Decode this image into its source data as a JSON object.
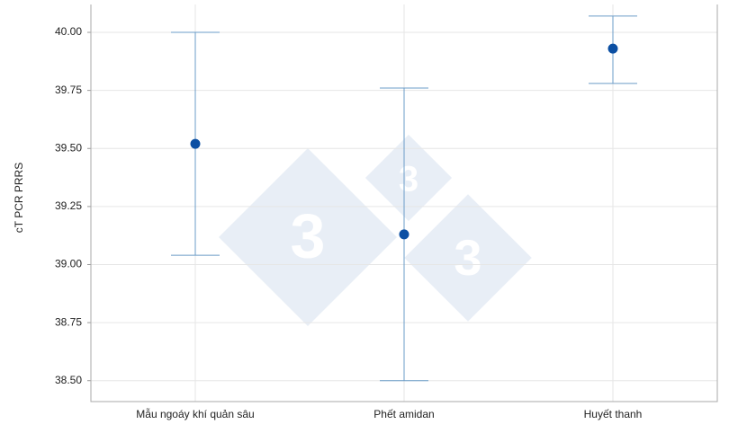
{
  "chart_data": {
    "type": "errorbar",
    "ylabel": "cT PCR PRRS",
    "categories": [
      "Mẫu ngoáy khí quản sâu",
      "Phết amidan",
      "Huyết thanh"
    ],
    "series": [
      {
        "color": "#0b4fa3",
        "error_color": "#6b9cc8",
        "values": [
          39.52,
          39.13,
          39.93
        ],
        "lower": [
          39.04,
          38.5,
          39.78
        ],
        "upper": [
          40.0,
          39.76,
          40.07
        ]
      }
    ],
    "ylim": [
      38.41,
      40.12
    ],
    "yticks": [
      {
        "value": 38.5,
        "label": "38.50"
      },
      {
        "value": 38.75,
        "label": "38.75"
      },
      {
        "value": 39,
        "label": "39.00"
      },
      {
        "value": 39.25,
        "label": "39.25"
      },
      {
        "value": 39.5,
        "label": "39.50"
      },
      {
        "value": 39.75,
        "label": "39.75"
      },
      {
        "value": 40,
        "label": "40.00"
      }
    ],
    "grid": true,
    "watermark": "3"
  }
}
